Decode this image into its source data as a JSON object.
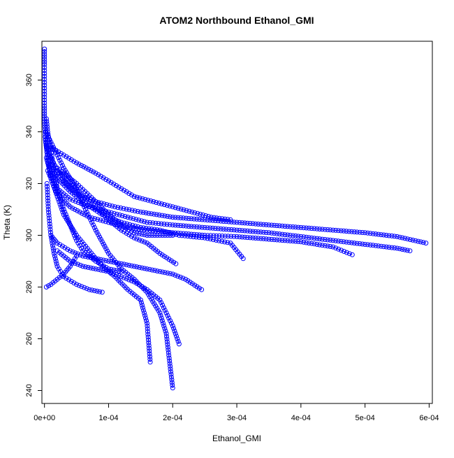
{
  "chart_data": {
    "type": "scatter",
    "title": "ATOM2 Northbound Ethanol_GMI",
    "xlabel": "Ethanol_GMI",
    "ylabel": "Theta (K)",
    "xlim": [
      -4e-06,
      0.000605
    ],
    "ylim": [
      235,
      375
    ],
    "x_ticks": [
      0,
      0.0001,
      0.0002,
      0.0003,
      0.0004,
      0.0005,
      0.0006
    ],
    "x_tick_labels": [
      "0e+00",
      "1e-04",
      "2e-04",
      "3e-04",
      "4e-04",
      "5e-04",
      "6e-04"
    ],
    "y_ticks": [
      240,
      260,
      280,
      300,
      320,
      340,
      360
    ],
    "y_tick_labels": [
      "240",
      "260",
      "280",
      "300",
      "320",
      "340",
      "360"
    ],
    "grid": false,
    "colors": {
      "series": "#0000ff",
      "axis": "#000000",
      "background": "#ffffff"
    },
    "series": [
      {
        "marker": "open-circle",
        "connected": true,
        "x": [
          0.0,
          0.0,
          0.0,
          0.0,
          0.0,
          1e-06,
          2e-06,
          5e-06
        ],
        "y": [
          372,
          366,
          358,
          350,
          344,
          340,
          336,
          330
        ]
      },
      {
        "marker": "open-circle",
        "connected": true,
        "x": [
          2e-06,
          1e-05,
          2e-05,
          3e-05,
          5e-05,
          8e-05,
          0.00011,
          0.00015,
          0.0002,
          0.00025,
          0.0003,
          0.00035,
          0.0004,
          0.00045,
          0.0005,
          0.00055,
          0.000595
        ],
        "y": [
          336,
          330,
          325,
          321,
          316,
          313,
          311,
          309,
          307,
          306,
          305,
          304,
          303,
          302,
          301,
          299.5,
          297
        ]
      },
      {
        "marker": "open-circle",
        "connected": true,
        "x": [
          3e-06,
          1e-05,
          2e-05,
          4e-05,
          7e-05,
          0.0001,
          0.00013,
          0.00016,
          0.0002,
          0.00025,
          0.0003,
          0.00035,
          0.0004,
          0.00045,
          0.0005,
          0.00055,
          0.00057
        ],
        "y": [
          330,
          323,
          318,
          314,
          311,
          309,
          307,
          305,
          304,
          303,
          302,
          301,
          299.5,
          298,
          296.5,
          295,
          294
        ]
      },
      {
        "marker": "open-circle",
        "connected": true,
        "x": [
          5e-06,
          2e-05,
          4e-05,
          7e-05,
          0.0001,
          0.00013,
          0.00016,
          0.0002,
          0.00025,
          0.0003,
          0.00035,
          0.0004,
          0.00045,
          0.00048
        ],
        "y": [
          325,
          316,
          311,
          307,
          305,
          303,
          302,
          301,
          300,
          299.5,
          298.5,
          297.5,
          295.5,
          292.5
        ]
      },
      {
        "marker": "open-circle",
        "connected": true,
        "x": [
          5e-06,
          2e-05,
          4e-05,
          6e-05,
          9e-05,
          0.00012,
          0.00015,
          0.00018,
          0.00021,
          0.00025,
          0.00029,
          0.00031
        ],
        "y": [
          328,
          322,
          317,
          313,
          308,
          305,
          303,
          302,
          300,
          299,
          297,
          291
        ]
      },
      {
        "marker": "open-circle",
        "connected": true,
        "x": [
          3e-06,
          1e-05,
          2e-05,
          4e-05,
          6e-05,
          8e-05,
          0.0001,
          0.00012,
          0.00014,
          0.00016,
          0.00018,
          0.000205
        ],
        "y": [
          335,
          330,
          325,
          320,
          315,
          311,
          306,
          302,
          299,
          297,
          293,
          289
        ]
      },
      {
        "marker": "open-circle",
        "connected": true,
        "x": [
          2e-06,
          1e-05,
          2e-05,
          3e-05,
          5e-05,
          6e-05,
          8e-05,
          0.0001,
          0.00012,
          0.00014,
          0.00016,
          0.00018,
          0.00019,
          0.0002
        ],
        "y": [
          340,
          336,
          331,
          326,
          318,
          312,
          302,
          293,
          287,
          283,
          278,
          270,
          262,
          241
        ]
      },
      {
        "marker": "open-circle",
        "connected": true,
        "x": [
          1e-06,
          5e-06,
          1e-05,
          2e-05,
          3e-05,
          5e-05,
          7e-05,
          9e-05,
          0.00011,
          0.00013,
          0.00015,
          0.00016,
          0.000165
        ],
        "y": [
          338,
          330,
          322,
          315,
          308,
          300,
          294,
          288,
          284,
          279,
          275,
          266,
          251
        ]
      },
      {
        "marker": "open-circle",
        "connected": true,
        "x": [
          2e-05,
          4e-05,
          6e-05,
          8e-05,
          0.0001,
          0.00012,
          0.00014,
          0.00016,
          0.00018,
          0.00019,
          0.0002,
          0.00021
        ],
        "y": [
          294,
          290,
          288,
          287,
          286,
          284,
          282,
          279,
          275,
          270,
          265,
          258
        ]
      },
      {
        "marker": "open-circle",
        "connected": true,
        "x": [
          3e-06,
          5e-06,
          1e-05,
          1.5e-05,
          2e-05,
          3e-05,
          4e-05,
          5e-05,
          6e-05,
          8e-05,
          0.0001,
          0.00012
        ],
        "y": [
          345,
          340,
          333,
          325,
          318,
          310,
          304,
          298,
          294,
          290,
          287,
          286
        ]
      },
      {
        "marker": "open-circle",
        "connected": true,
        "x": [
          4e-06,
          6e-06,
          1e-05,
          1.5e-05,
          2e-05,
          3e-05,
          5e-05,
          7e-05,
          9e-05
        ],
        "y": [
          320,
          310,
          300,
          293,
          288,
          284,
          281,
          279,
          278
        ]
      },
      {
        "marker": "open-circle",
        "connected": true,
        "x": [
          1e-05,
          2e-05,
          4e-05,
          6e-05,
          8e-05,
          0.0001,
          0.00012,
          0.00014,
          0.00016,
          0.00018,
          0.0002,
          0.00022,
          0.000245
        ],
        "y": [
          300,
          297,
          294,
          292,
          291,
          290,
          289,
          288,
          287,
          286,
          285,
          283,
          279
        ]
      },
      {
        "marker": "open-circle",
        "connected": true,
        "x": [
          2e-05,
          5e-05,
          8e-05,
          0.0001,
          0.00012,
          0.00014,
          0.00016,
          0.00018,
          0.0002
        ],
        "y": [
          326,
          320,
          313,
          308,
          304,
          301,
          300,
          300,
          300
        ]
      },
      {
        "marker": "open-circle",
        "connected": true,
        "x": [
          1e-05,
          3e-05,
          5e-05,
          8e-05,
          0.0001,
          0.00012,
          0.00014,
          0.00017,
          0.0002,
          0.00023,
          0.00026,
          0.00029
        ],
        "y": [
          334,
          331,
          328,
          324,
          321,
          318,
          315,
          313,
          311,
          309,
          307,
          306
        ]
      },
      {
        "marker": "open-circle",
        "connected": true,
        "x": [
          3e-06,
          1e-05,
          2e-05,
          3e-05,
          4e-05,
          5e-05
        ],
        "y": [
          280,
          281,
          283,
          285,
          288,
          292
        ]
      }
    ]
  }
}
